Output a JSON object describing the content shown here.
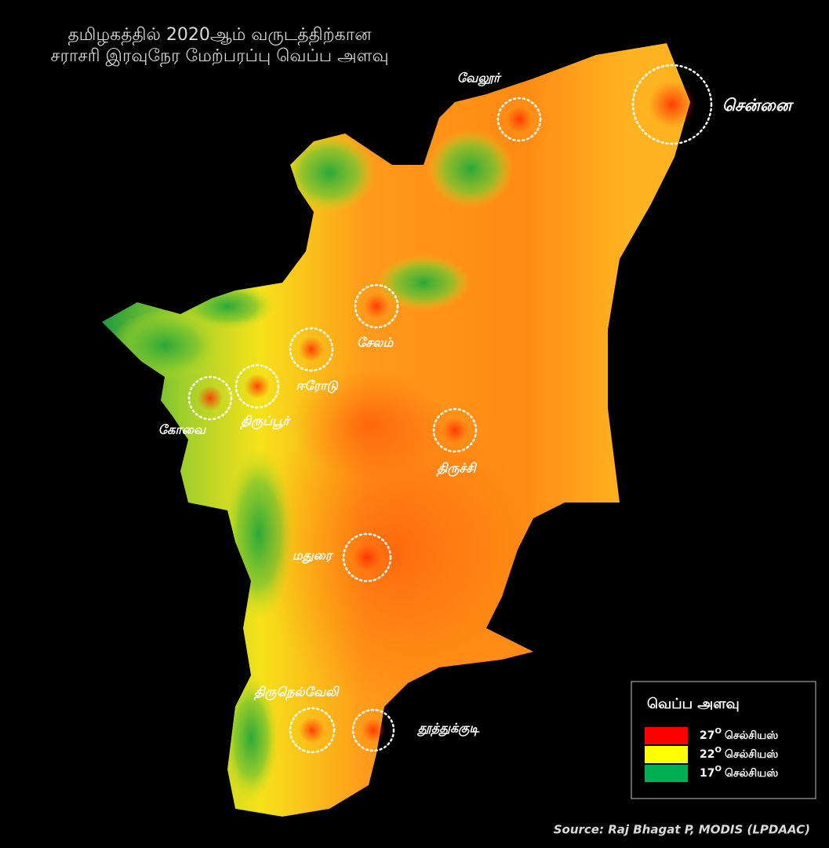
{
  "title": [
    "தமிழகத்தில் 2020ஆம் வருடத்திற்கான",
    "சராசரி இரவுநேர மேற்பரப்பு வெப்ப அளவு"
  ],
  "cities": [
    "வேலூர்",
    "சென்னை",
    "சேலம்",
    "ஈரோடு",
    "திருப்பூர்",
    "கோவை",
    "திருச்சி",
    "மதுரை",
    "திருநெல்வேலி",
    "தூத்துக்குடி"
  ],
  "legend": {
    "title": "வெப்ப அளவு",
    "degree_mark": "O",
    "unit": "செல்சியஸ்",
    "items": [
      {
        "value": 27,
        "color": "#ff0000"
      },
      {
        "value": 22,
        "color": "#ffff00"
      },
      {
        "value": 17,
        "color": "#00b050"
      }
    ]
  },
  "source": "Source: Raj Bhagat P, MODIS (LPDAAC)"
}
